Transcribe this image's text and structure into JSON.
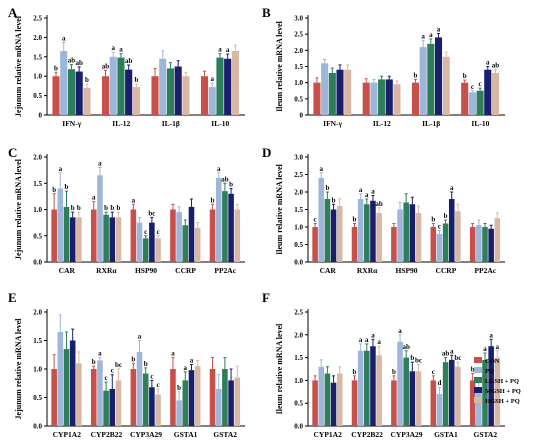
{
  "figure": {
    "colors": {
      "CON": "#c8504b",
      "PQ": "#9db6d9",
      "LGSH_PQ": "#2e7d5b",
      "MGSH_PQ": "#1a1f6b",
      "HGSH_PQ": "#d8b8a4"
    },
    "legend": [
      "CON",
      "PQ",
      "LGSH + PQ",
      "MGSH + PQ",
      "HGSH + PQ"
    ]
  },
  "chart_data": [
    {
      "type": "bar",
      "panel": "A",
      "ylabel": "Jejunum relative mRNA level",
      "ylim": [
        0,
        2.5
      ],
      "yticks": [
        "0",
        "0.5",
        "1.0",
        "1.5",
        "2.0",
        "2.5"
      ],
      "categories": [
        "IFN-γ",
        "IL-12",
        "IL-1β",
        "IL-10"
      ],
      "series": [
        {
          "name": "CON",
          "values": [
            1.0,
            1.0,
            1.0,
            1.0
          ]
        },
        {
          "name": "PQ",
          "values": [
            1.65,
            1.5,
            1.45,
            0.72
          ]
        },
        {
          "name": "LGSH + PQ",
          "values": [
            1.18,
            1.48,
            1.2,
            1.48
          ]
        },
        {
          "name": "MGSH + PQ",
          "values": [
            1.12,
            1.17,
            1.25,
            1.45
          ]
        },
        {
          "name": "HGSH + PQ",
          "values": [
            0.7,
            0.72,
            1.0,
            1.65
          ]
        }
      ],
      "errors": [
        [
          0.1,
          0.15,
          0.2,
          0.13
        ],
        [
          0.22,
          0.12,
          0.2,
          0.1
        ],
        [
          0.12,
          0.1,
          0.15,
          0.1
        ],
        [
          0.12,
          0.12,
          0.15,
          0.12
        ],
        [
          0.1,
          0.08,
          0.1,
          0.15
        ]
      ],
      "letters": [
        [
          "b",
          "ab",
          "",
          ""
        ],
        [
          "a",
          "a",
          "",
          "a"
        ],
        [
          "ab",
          "a",
          "",
          "a"
        ],
        [
          "ab",
          "ab",
          "",
          "a"
        ],
        [
          "b",
          "b",
          "",
          ""
        ]
      ]
    },
    {
      "type": "bar",
      "panel": "B",
      "ylabel": "Ileum relative mRNA level",
      "ylim": [
        0,
        3.0
      ],
      "yticks": [
        "0",
        "0.5",
        "1.0",
        "1.5",
        "2.0",
        "2.5",
        "3.0"
      ],
      "categories": [
        "IFN-γ",
        "IL-12",
        "IL-1β",
        "IL-10"
      ],
      "series": [
        {
          "name": "CON",
          "values": [
            1.0,
            1.0,
            1.0,
            1.0
          ]
        },
        {
          "name": "PQ",
          "values": [
            1.6,
            1.0,
            2.1,
            0.7
          ]
        },
        {
          "name": "LGSH + PQ",
          "values": [
            1.3,
            1.1,
            2.2,
            0.75
          ]
        },
        {
          "name": "MGSH + PQ",
          "values": [
            1.4,
            1.1,
            2.4,
            1.4
          ]
        },
        {
          "name": "HGSH + PQ",
          "values": [
            1.4,
            0.95,
            1.8,
            1.3
          ]
        }
      ],
      "errors": [
        [
          0.15,
          0.12,
          0.1,
          0.08
        ],
        [
          0.12,
          0.1,
          0.2,
          0.05
        ],
        [
          0.15,
          0.1,
          0.15,
          0.08
        ],
        [
          0.15,
          0.1,
          0.12,
          0.1
        ],
        [
          0.15,
          0.1,
          0.15,
          0.1
        ]
      ],
      "letters": [
        [
          "",
          "",
          "b",
          "b"
        ],
        [
          "",
          "",
          "a",
          "c"
        ],
        [
          "",
          "",
          "a",
          "c"
        ],
        [
          "",
          "",
          "a",
          "a"
        ],
        [
          "",
          "",
          "",
          "ab"
        ]
      ]
    },
    {
      "type": "bar",
      "panel": "C",
      "ylabel": "Jejunum relative mRNA level",
      "ylim": [
        0,
        2.0
      ],
      "yticks": [
        "0.0",
        "0.5",
        "1.0",
        "1.5",
        "2.0"
      ],
      "categories": [
        "CAR",
        "RXRα",
        "HSP90",
        "CCRP",
        "PP2Ac"
      ],
      "series": [
        {
          "name": "CON",
          "values": [
            1.0,
            1.0,
            1.0,
            1.0,
            1.0
          ]
        },
        {
          "name": "PQ",
          "values": [
            1.4,
            1.65,
            0.75,
            0.95,
            1.6
          ]
        },
        {
          "name": "LGSH + PQ",
          "values": [
            1.05,
            0.9,
            0.45,
            0.7,
            1.35
          ]
        },
        {
          "name": "MGSH + PQ",
          "values": [
            0.85,
            0.85,
            0.75,
            1.05,
            1.3
          ]
        },
        {
          "name": "HGSH + PQ",
          "values": [
            0.85,
            0.85,
            0.45,
            0.65,
            1.0
          ]
        }
      ],
      "errors": [
        [
          0.3,
          0.15,
          0.1,
          0.1,
          0.1
        ],
        [
          0.3,
          0.15,
          0.1,
          0.1,
          0.1
        ],
        [
          0.3,
          0.05,
          0.05,
          0.1,
          0.15
        ],
        [
          0.1,
          0.1,
          0.1,
          0.15,
          0.1
        ],
        [
          0.1,
          0.1,
          0.05,
          0.1,
          0.1
        ]
      ],
      "letters": [
        [
          "b",
          "a",
          "a",
          "",
          "b"
        ],
        [
          "a",
          "a",
          "",
          "",
          "a"
        ],
        [
          "b",
          "b",
          "c",
          "",
          "ab"
        ],
        [
          "b",
          "b",
          "bc",
          "",
          "b"
        ],
        [
          "b",
          "b",
          "c",
          "",
          ""
        ]
      ]
    },
    {
      "type": "bar",
      "panel": "D",
      "ylabel": "Ileum relative mRNA level",
      "ylim": [
        0,
        3.0
      ],
      "yticks": [
        "0.0",
        "0.5",
        "1.0",
        "1.5",
        "2.0",
        "2.5",
        "3.0"
      ],
      "categories": [
        "CAR",
        "RXRα",
        "HSP90",
        "CCRP",
        "PP2Ac"
      ],
      "series": [
        {
          "name": "CON",
          "values": [
            1.0,
            1.0,
            1.0,
            1.0,
            1.0
          ]
        },
        {
          "name": "PQ",
          "values": [
            2.4,
            1.8,
            1.5,
            0.8,
            1.05
          ]
        },
        {
          "name": "LGSH + PQ",
          "values": [
            1.8,
            1.65,
            1.7,
            1.1,
            1.0
          ]
        },
        {
          "name": "MGSH + PQ",
          "values": [
            1.5,
            1.75,
            1.65,
            1.8,
            0.95
          ]
        },
        {
          "name": "HGSH + PQ",
          "values": [
            1.6,
            1.4,
            1.4,
            1.45,
            1.25
          ]
        }
      ],
      "errors": [
        [
          0.1,
          0.1,
          0.1,
          0.1,
          0.1
        ],
        [
          0.15,
          0.15,
          0.2,
          0.1,
          0.15
        ],
        [
          0.2,
          0.15,
          0.25,
          0.1,
          0.1
        ],
        [
          0.15,
          0.15,
          0.2,
          0.2,
          0.1
        ],
        [
          0.2,
          0.15,
          0.2,
          0.2,
          0.15
        ]
      ],
      "letters": [
        [
          "c",
          "b",
          "",
          "b",
          ""
        ],
        [
          "a",
          "a",
          "",
          "c",
          ""
        ],
        [
          "b",
          "a",
          "",
          "b",
          ""
        ],
        [
          "b",
          "a",
          "",
          "a",
          ""
        ],
        [
          "",
          "ab",
          "",
          "",
          ""
        ]
      ]
    },
    {
      "type": "bar",
      "panel": "E",
      "ylabel": "Jejunum relative mRNA level",
      "ylim": [
        0,
        2.0
      ],
      "yticks": [
        "0.0",
        "0.5",
        "1.0",
        "1.5",
        "2.0"
      ],
      "categories": [
        "CYP1A2",
        "CYP2B22",
        "CYP3A29",
        "GSTA1",
        "GSTA2"
      ],
      "series": [
        {
          "name": "CON",
          "values": [
            1.0,
            1.0,
            1.0,
            1.0,
            1.0
          ]
        },
        {
          "name": "PQ",
          "values": [
            1.65,
            1.15,
            1.3,
            0.45,
            0.65
          ]
        },
        {
          "name": "LGSH + PQ",
          "values": [
            1.35,
            0.62,
            0.92,
            0.8,
            1.0
          ]
        },
        {
          "name": "MGSH + PQ",
          "values": [
            1.5,
            0.65,
            0.68,
            0.98,
            0.8
          ]
        },
        {
          "name": "HGSH + PQ",
          "values": [
            1.1,
            0.8,
            0.55,
            1.05,
            0.85
          ]
        }
      ],
      "errors": [
        [
          0.25,
          0.05,
          0.1,
          0.2,
          0.2
        ],
        [
          0.3,
          0.05,
          0.2,
          0.15,
          0.25
        ],
        [
          0.3,
          0.15,
          0.1,
          0.15,
          0.2
        ],
        [
          0.2,
          0.25,
          0.12,
          0.1,
          0.2
        ],
        [
          0.2,
          0.2,
          0.1,
          0.1,
          0.2
        ]
      ],
      "letters": [
        [
          "",
          "b",
          "b",
          "a",
          ""
        ],
        [
          "",
          "a",
          "a",
          "b",
          ""
        ],
        [
          "",
          "c",
          "b",
          "a",
          ""
        ],
        [
          "",
          "c",
          "c",
          "a",
          ""
        ],
        [
          "",
          "bc",
          "c",
          "",
          ""
        ]
      ]
    },
    {
      "type": "bar",
      "panel": "F",
      "ylabel": "Ileum relative mRNA level",
      "ylim": [
        0,
        2.5
      ],
      "yticks": [
        "0.0",
        "0.5",
        "1.0",
        "1.5",
        "2.0",
        "2.5"
      ],
      "categories": [
        "CYP1A2",
        "CYP2B22",
        "CYP3A29",
        "GSTA1",
        "GSTA2"
      ],
      "series": [
        {
          "name": "CON",
          "values": [
            1.0,
            1.0,
            1.0,
            1.0,
            1.0
          ]
        },
        {
          "name": "PQ",
          "values": [
            1.3,
            1.65,
            1.85,
            0.7,
            0.75
          ]
        },
        {
          "name": "LGSH + PQ",
          "values": [
            1.15,
            1.65,
            1.5,
            1.4,
            1.45
          ]
        },
        {
          "name": "MGSH + PQ",
          "values": [
            0.95,
            1.75,
            1.2,
            1.45,
            1.75
          ]
        },
        {
          "name": "HGSH + PQ",
          "values": [
            1.15,
            1.55,
            1.2,
            1.3,
            1.5
          ]
        }
      ],
      "errors": [
        [
          0.1,
          0.1,
          0.1,
          0.1,
          0.15
        ],
        [
          0.15,
          0.15,
          0.15,
          0.15,
          0.2
        ],
        [
          0.15,
          0.15,
          0.15,
          0.1,
          0.15
        ],
        [
          0.15,
          0.15,
          0.2,
          0.1,
          0.15
        ],
        [
          0.15,
          0.2,
          0.15,
          0.1,
          0.15
        ]
      ],
      "letters": [
        [
          "",
          "b",
          "b",
          "c",
          "b"
        ],
        [
          "",
          "a",
          "a",
          "d",
          "c"
        ],
        [
          "",
          "a",
          "ab",
          "ab",
          "a"
        ],
        [
          "",
          "a",
          "b",
          "a",
          "a"
        ],
        [
          "",
          "a",
          "bc",
          "bc",
          "a"
        ]
      ]
    }
  ]
}
